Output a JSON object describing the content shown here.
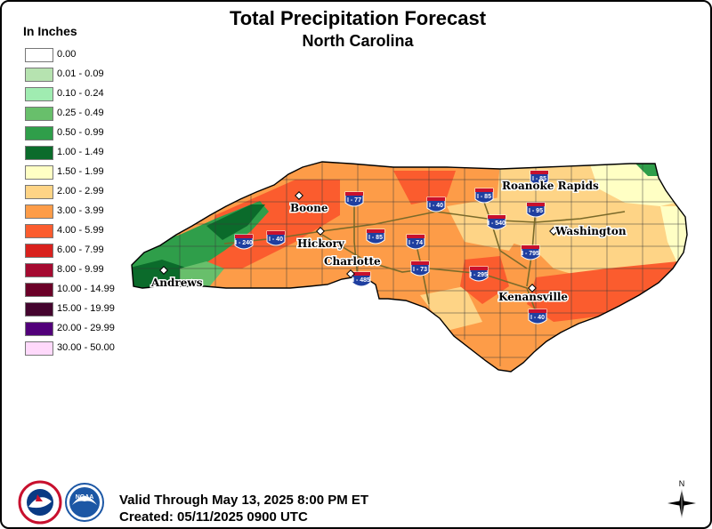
{
  "title": "Total Precipitation Forecast",
  "subtitle": "North Carolina",
  "legend": {
    "title": "In Inches",
    "items": [
      {
        "label": "0.00",
        "color": "#ffffff"
      },
      {
        "label": "0.01 - 0.09",
        "color": "#b6e3b0"
      },
      {
        "label": "0.10 - 0.24",
        "color": "#a0ecb1"
      },
      {
        "label": "0.25 - 0.49",
        "color": "#68bf6b"
      },
      {
        "label": "0.50 - 0.99",
        "color": "#2f9e4a"
      },
      {
        "label": "1.00 - 1.49",
        "color": "#0b6b2b"
      },
      {
        "label": "1.50 - 1.99",
        "color": "#ffffc4"
      },
      {
        "label": "2.00 - 2.99",
        "color": "#fed486"
      },
      {
        "label": "3.00 - 3.99",
        "color": "#fd9c48"
      },
      {
        "label": "4.00 - 5.99",
        "color": "#fb5c2e"
      },
      {
        "label": "6.00 - 7.99",
        "color": "#d9211d"
      },
      {
        "label": "8.00 - 9.99",
        "color": "#a50a30"
      },
      {
        "label": "10.00 - 14.99",
        "color": "#6b0028"
      },
      {
        "label": "15.00 - 19.99",
        "color": "#44042e"
      },
      {
        "label": "20.00 - 29.99",
        "color": "#52007a"
      },
      {
        "label": "30.00 - 50.00",
        "color": "#ffd9fb"
      }
    ]
  },
  "cities": [
    {
      "name": "Boone"
    },
    {
      "name": "Roanoke Rapids"
    },
    {
      "name": "Washington"
    },
    {
      "name": "Hickory"
    },
    {
      "name": "Charlotte"
    },
    {
      "name": "Andrews"
    },
    {
      "name": "Kenansville"
    }
  ],
  "interstates": [
    "I - 77",
    "I - 85",
    "I - 40",
    "I - 85",
    "I - 540",
    "I - 95",
    "I - 240",
    "I - 40",
    "I - 85",
    "I - 74",
    "I - 795",
    "I - 73",
    "I - 295",
    "I - 485",
    "I - 40"
  ],
  "footer": {
    "valid": "Valid Through May 13, 2025 8:00 PM ET",
    "created": "Created: 05/11/2025 0900 UTC"
  },
  "compass": {
    "north_label": "N"
  },
  "logos": {
    "nws_text": "NATIONAL WEATHER SERVICE",
    "noaa_text": "NOAA"
  }
}
